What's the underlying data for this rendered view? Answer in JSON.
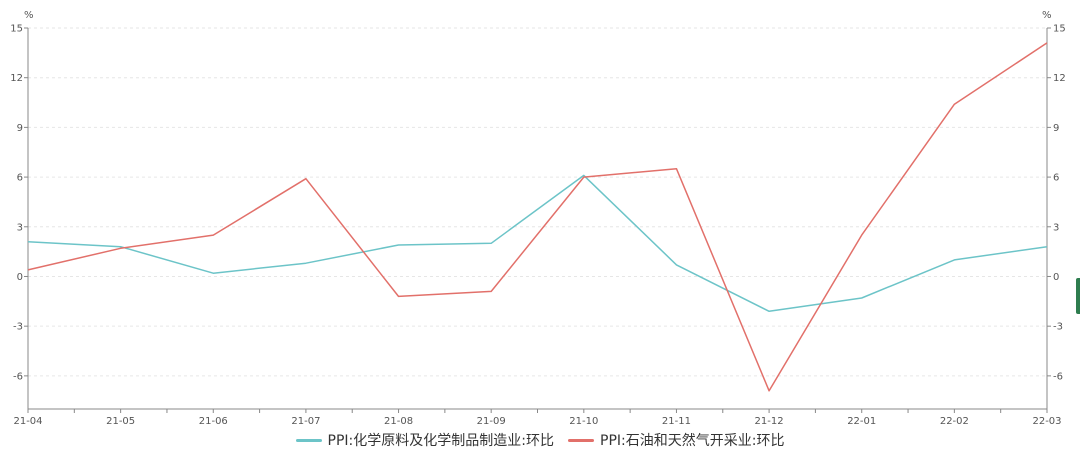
{
  "chart_data": {
    "type": "line",
    "title": "",
    "x": [
      "21-04",
      "21-05",
      "21-06",
      "21-07",
      "21-08",
      "21-09",
      "21-10",
      "21-11",
      "21-12",
      "22-01",
      "22-02",
      "22-03"
    ],
    "y_unit_left": "%",
    "y_unit_right": "%",
    "ylim": [
      -8,
      15
    ],
    "yticks": [
      15,
      12,
      9,
      6,
      3,
      0,
      -3,
      -6
    ],
    "grid": true,
    "legend_position": "bottom",
    "series": [
      {
        "name": "PPI:化学原料及化学制品制造业:环比",
        "color": "#6cc4c8",
        "values": [
          2.1,
          1.8,
          0.2,
          0.8,
          1.9,
          2.0,
          6.1,
          0.7,
          -2.1,
          -1.3,
          1.0,
          1.8
        ]
      },
      {
        "name": "PPI:石油和天然气开采业:环比",
        "color": "#e2706a",
        "values": [
          0.4,
          1.7,
          2.5,
          5.9,
          -1.2,
          -0.9,
          6.0,
          6.5,
          -6.9,
          2.5,
          10.4,
          14.1
        ]
      }
    ]
  },
  "colors": {
    "axis": "#888888",
    "grid": "#e6e6e6",
    "edge_tab": "#2e7d4f"
  }
}
